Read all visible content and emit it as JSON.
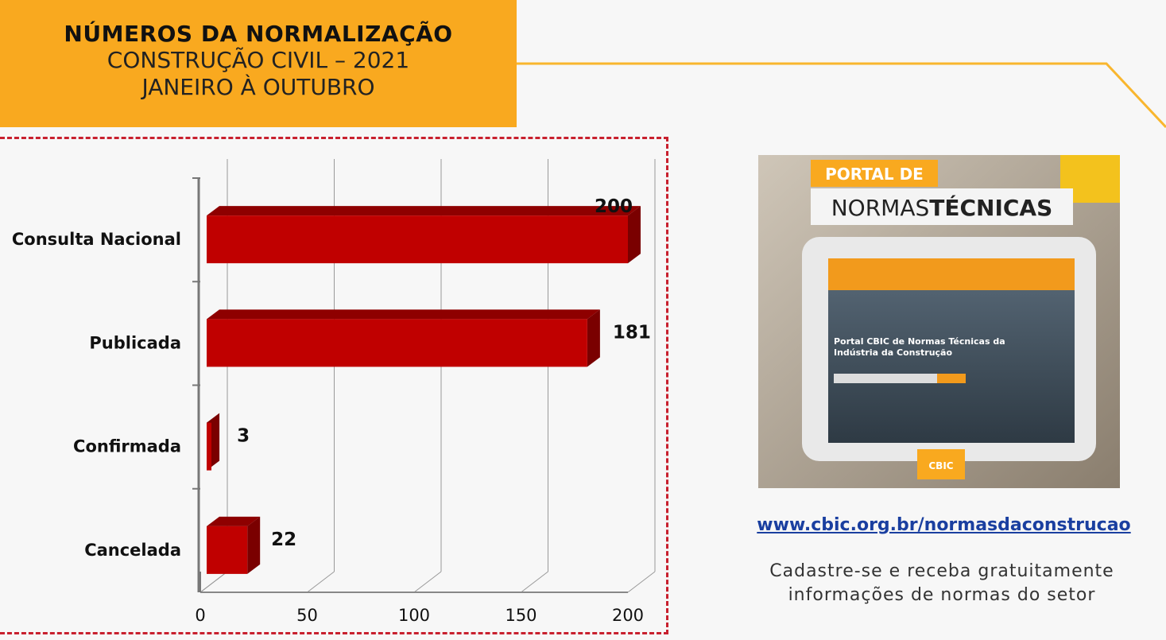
{
  "header": {
    "title": "NÚMEROS DA NORMALIZAÇÃO",
    "subtitle1": "CONSTRUÇÃO CIVIL – 2021",
    "subtitle2": "JANEIRO À OUTUBRO"
  },
  "chart_data": {
    "type": "bar",
    "orientation": "horizontal",
    "categories": [
      "Consulta Nacional",
      "Publicada",
      "Confirmada",
      "Cancelada"
    ],
    "values": [
      200,
      181,
      3,
      22
    ],
    "xticks": [
      "0",
      "50",
      "100",
      "150",
      "200"
    ],
    "xlim": [
      0,
      200
    ],
    "grid": true,
    "bar_color": "#c00000"
  },
  "promo": {
    "banner_line1": "PORTAL DE",
    "banner_line2a": "NORMAS",
    "banner_line2b": "TÉCNICAS",
    "screen_title": "Portal CBIC de Normas Técnicas da Indústria da Construção",
    "logo": "CBIC",
    "link": "www.cbic.org.br/normasdaconstrucao",
    "caption_line1": "Cadastre-se e receba gratuitamente",
    "caption_line2": "informações de normas do setor"
  },
  "colors": {
    "accent": "#f9a91f",
    "bar": "#c00000",
    "link": "#1a3fa0"
  }
}
